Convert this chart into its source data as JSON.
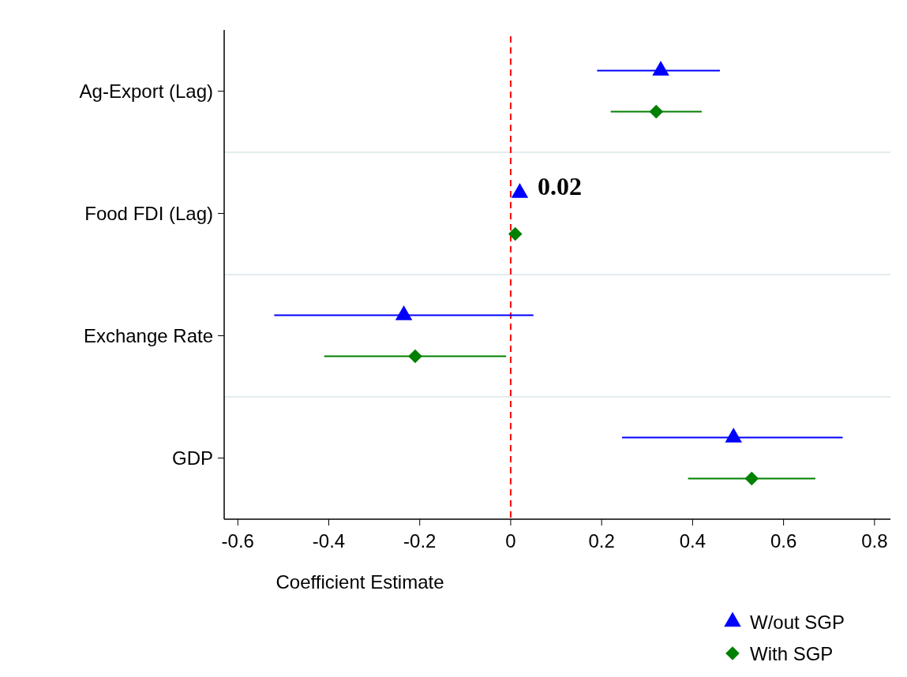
{
  "chart_data": {
    "type": "scatter",
    "orientation": "horizontal",
    "xlabel": "Coefficient Estimate",
    "categories": [
      "Ag-Export (Lag)",
      "Food FDI (Lag)",
      "Exchange Rate",
      "GDP"
    ],
    "series": [
      {
        "name": "W/out SGP",
        "color": "#0000ff",
        "marker": "triangle",
        "values": [
          0.33,
          0.02,
          -0.235,
          0.49
        ],
        "errors": [
          [
            0.19,
            0.46
          ],
          null,
          [
            -0.52,
            0.05
          ],
          [
            0.245,
            0.73
          ]
        ]
      },
      {
        "name": "With SGP",
        "color": "#008000",
        "marker": "diamond",
        "values": [
          0.32,
          0.01,
          -0.21,
          0.53
        ],
        "errors": [
          [
            0.22,
            0.42
          ],
          null,
          [
            -0.41,
            -0.01
          ],
          [
            0.39,
            0.67
          ]
        ]
      }
    ],
    "xlim": [
      -0.63,
      0.835
    ],
    "xticks": [
      -0.6,
      -0.4,
      -0.2,
      0,
      0.2,
      0.4,
      0.6,
      0.8
    ],
    "ref_lines": [
      {
        "axis": "x",
        "value": 0,
        "color": "#ff0000",
        "line_style": "dashed"
      }
    ],
    "annotations": [
      "0.02"
    ],
    "grid": "y",
    "legend": "bottom right"
  }
}
